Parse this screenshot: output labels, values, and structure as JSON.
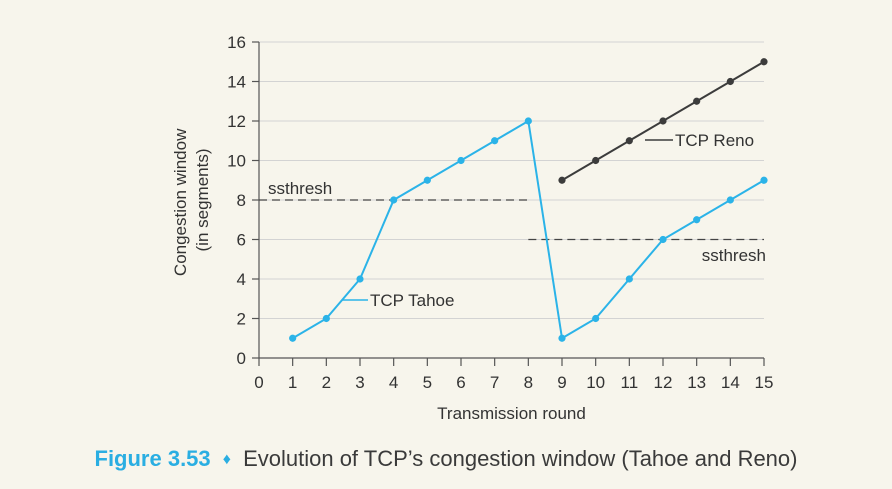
{
  "chart_data": {
    "type": "line",
    "xlabel": "Transmission round",
    "ylabel_line1": "Congestion window",
    "ylabel_line2": "(in segments)",
    "xlim": [
      0,
      15
    ],
    "ylim": [
      0,
      16
    ],
    "x_ticks": [
      0,
      1,
      2,
      3,
      4,
      5,
      6,
      7,
      8,
      9,
      10,
      11,
      12,
      13,
      14,
      15
    ],
    "y_ticks": [
      0,
      2,
      4,
      6,
      8,
      10,
      12,
      14,
      16
    ],
    "grid": "horizontal",
    "series": [
      {
        "name": "TCP Tahoe",
        "color": "#2bb3e8",
        "x": [
          1,
          2,
          3,
          4,
          5,
          6,
          7,
          8,
          9,
          10,
          11,
          12,
          13,
          14,
          15
        ],
        "y": [
          1,
          2,
          4,
          8,
          9,
          10,
          11,
          12,
          1,
          2,
          4,
          6,
          7,
          8,
          9
        ]
      },
      {
        "name": "TCP Reno",
        "color": "#3c3c3c",
        "x": [
          9,
          10,
          11,
          12,
          13,
          14,
          15
        ],
        "y": [
          9,
          10,
          11,
          12,
          13,
          14,
          15
        ]
      }
    ],
    "thresholds": [
      {
        "label": "ssthresh",
        "value": 8,
        "x_range": [
          0,
          8
        ]
      },
      {
        "label": "ssthresh",
        "value": 6,
        "x_range": [
          8,
          15
        ]
      }
    ],
    "annotations": {
      "tahoe_label": "TCP Tahoe",
      "reno_label": "TCP Reno",
      "ssthresh_upper": "ssthresh",
      "ssthresh_lower": "ssthresh"
    }
  },
  "caption": {
    "figure_number": "Figure 3.53",
    "separator": "♦",
    "text": "Evolution of TCP’s congestion window (Tahoe and Reno)"
  }
}
